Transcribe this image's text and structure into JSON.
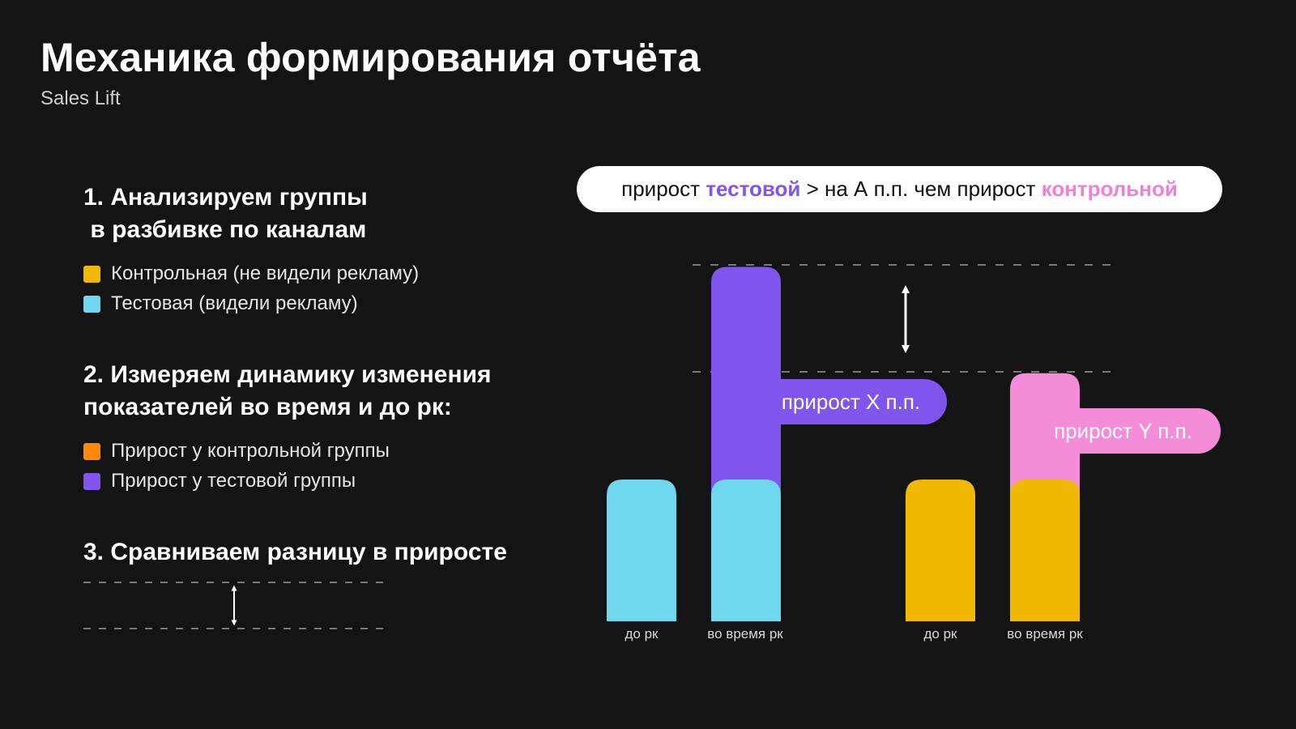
{
  "header": {
    "title": "Механика формирования отчёта",
    "subtitle": "Sales Lift"
  },
  "steps": [
    {
      "title": "1. Анализируем группы\n в разбивке по каналам",
      "legend": [
        {
          "label": "Контрольная (не видели рекламу)",
          "color": "#F0B800"
        },
        {
          "label": "Тестовая (видели рекламу)",
          "color": "#6FD8EE"
        }
      ]
    },
    {
      "title": "2. Измеряем динамику изменения\nпоказателей во время и до рк:",
      "legend": [
        {
          "label": "Прирост у контрольной группы",
          "color": "#FF8A00"
        },
        {
          "label": "Прирост у тестовой группы",
          "color": "#8055EE"
        }
      ]
    },
    {
      "title": "3. Сравниваем разницу в приросте"
    }
  ],
  "formula": {
    "prefix": "прирост ",
    "test_word": "тестовой",
    "middle": " > на А п.п. чем прирост ",
    "control_word": "контрольной",
    "test_color": "#8055EE",
    "control_color": "#F07FD8"
  },
  "pills": {
    "test_growth": "прирост X п.п.",
    "control_growth": "прирост Y п.п."
  },
  "chart_data": {
    "type": "bar",
    "categories": [
      "до рк",
      "во время рк",
      "до рк",
      "во время рк"
    ],
    "groups": [
      {
        "name": "Тестовая",
        "bars": [
          {
            "category": "до рк",
            "base": 1.0,
            "growth": 0
          },
          {
            "category": "во время рк",
            "base": 1.0,
            "growth": 1.5
          }
        ],
        "base_color": "#6FD8EE",
        "growth_color": "#8055EE"
      },
      {
        "name": "Контрольная",
        "bars": [
          {
            "category": "до рк",
            "base": 1.0,
            "growth": 0
          },
          {
            "category": "во время рк",
            "base": 1.0,
            "growth": 0.75
          }
        ],
        "base_color": "#F0B800",
        "growth_color": "#F48CD9"
      }
    ],
    "axes": "none",
    "grid": false
  },
  "colors": {
    "background": "#141414",
    "dashed": "#9a9a9a"
  }
}
